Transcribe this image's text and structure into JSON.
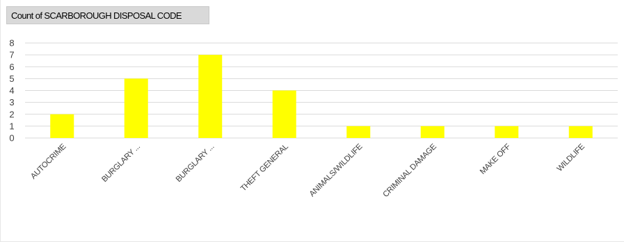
{
  "field_button": {
    "label": "Count of SCARBOROUGH DISPOSAL CODE"
  },
  "chart_data": {
    "type": "bar",
    "title": "",
    "xlabel": "",
    "ylabel": "",
    "categories": [
      "AUTOCRIME",
      "BURGLARY ...",
      "BURGLARY ...",
      "THEFT GENERAL",
      "ANIMALS/WILDLIFE",
      "CRIMINAL DAMAGE",
      "MAKE OFF",
      "WILDLIFE"
    ],
    "values": [
      2,
      5,
      7,
      4,
      1,
      1,
      1,
      1
    ],
    "ylim": [
      0,
      8
    ],
    "yticks": [
      0,
      1,
      2,
      3,
      4,
      5,
      6,
      7,
      8
    ],
    "grid": true,
    "bar_color": "#ffff00",
    "grid_color": "#d9d9d9",
    "legend": "none"
  }
}
